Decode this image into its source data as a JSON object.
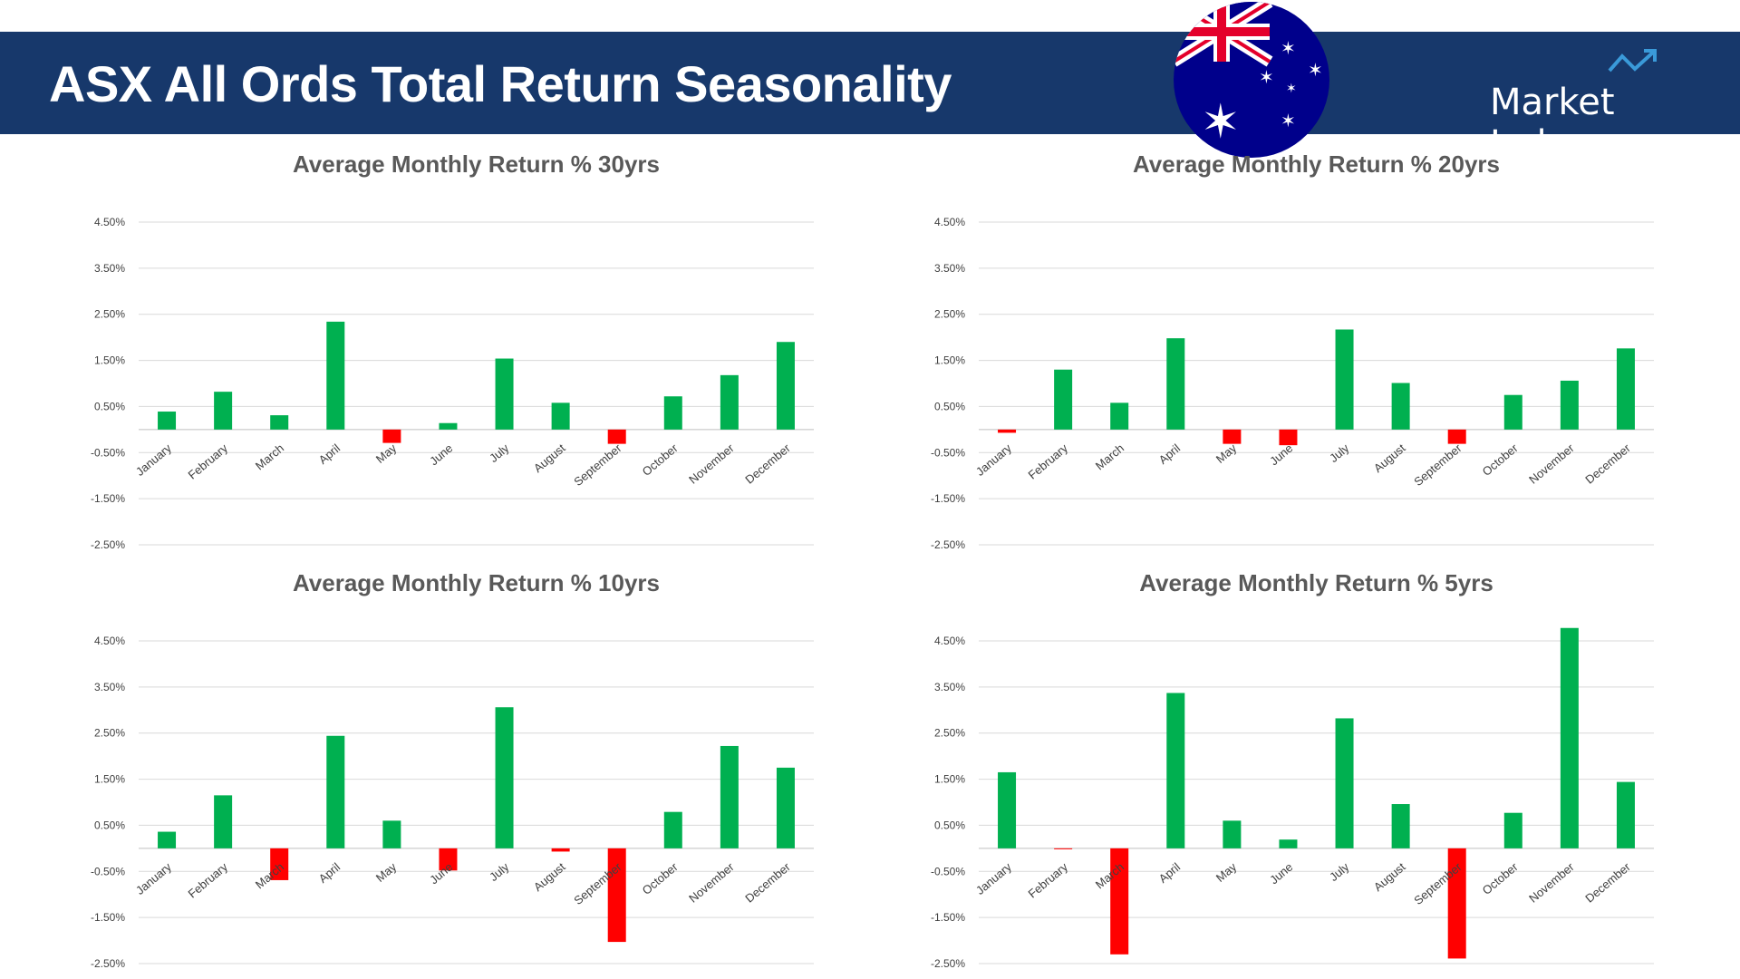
{
  "header": {
    "title": "ASX All Ords Total Return Seasonality",
    "logo_text": "Market Index",
    "logo_icon": "trend-up-arrow-icon",
    "flag": "australia-flag"
  },
  "colors": {
    "positive": "#00B050",
    "negative": "#FF0000",
    "header_bg": "#17386b",
    "grid": "#d9d9d9"
  },
  "chart_data": [
    {
      "type": "bar",
      "title": "Average Monthly Return % 30yrs",
      "yticks": [
        "4.50%",
        "3.50%",
        "2.50%",
        "1.50%",
        "0.50%",
        "-0.50%",
        "-1.50%",
        "-2.50%"
      ],
      "ytick_values": [
        4.5,
        3.5,
        2.5,
        1.5,
        0.5,
        -0.5,
        -1.5,
        -2.5
      ],
      "ylim": [
        -2.5,
        4.5
      ],
      "grid": true,
      "categories": [
        "January",
        "February",
        "March",
        "April",
        "May",
        "June",
        "July",
        "August",
        "September",
        "October",
        "November",
        "December"
      ],
      "values": [
        0.39,
        0.82,
        0.31,
        2.34,
        -0.29,
        0.14,
        1.54,
        0.58,
        -0.31,
        0.72,
        1.18,
        1.9
      ]
    },
    {
      "type": "bar",
      "title": "Average Monthly Return % 20yrs",
      "yticks": [
        "4.50%",
        "3.50%",
        "2.50%",
        "1.50%",
        "0.50%",
        "-0.50%",
        "-1.50%",
        "-2.50%"
      ],
      "ytick_values": [
        4.5,
        3.5,
        2.5,
        1.5,
        0.5,
        -0.5,
        -1.5,
        -2.5
      ],
      "ylim": [
        -2.5,
        4.5
      ],
      "grid": true,
      "categories": [
        "January",
        "February",
        "March",
        "April",
        "May",
        "June",
        "July",
        "August",
        "September",
        "October",
        "November",
        "December"
      ],
      "values": [
        -0.07,
        1.3,
        0.58,
        1.98,
        -0.31,
        -0.34,
        2.17,
        1.01,
        -0.31,
        0.75,
        1.06,
        1.76
      ]
    },
    {
      "type": "bar",
      "title": "Average Monthly Return % 10yrs",
      "yticks": [
        "4.50%",
        "3.50%",
        "2.50%",
        "1.50%",
        "0.50%",
        "-0.50%",
        "-1.50%",
        "-2.50%"
      ],
      "ytick_values": [
        4.5,
        3.5,
        2.5,
        1.5,
        0.5,
        -0.5,
        -1.5,
        -2.5
      ],
      "ylim": [
        -2.5,
        4.5
      ],
      "grid": true,
      "categories": [
        "January",
        "February",
        "March",
        "April",
        "May",
        "June",
        "July",
        "August",
        "September",
        "October",
        "November",
        "December"
      ],
      "values": [
        0.36,
        1.15,
        -0.69,
        2.44,
        0.6,
        -0.48,
        3.06,
        -0.07,
        -2.03,
        0.79,
        2.22,
        1.75
      ]
    },
    {
      "type": "bar",
      "title": "Average Monthly Return % 5yrs",
      "yticks": [
        "4.50%",
        "3.50%",
        "2.50%",
        "1.50%",
        "0.50%",
        "-0.50%",
        "-1.50%",
        "-2.50%"
      ],
      "ytick_values": [
        4.5,
        3.5,
        2.5,
        1.5,
        0.5,
        -0.5,
        -1.5,
        -2.5
      ],
      "ylim": [
        -2.5,
        4.5
      ],
      "grid": true,
      "categories": [
        "January",
        "February",
        "March",
        "April",
        "May",
        "June",
        "July",
        "August",
        "September",
        "October",
        "November",
        "December"
      ],
      "values": [
        1.65,
        -0.02,
        -2.3,
        3.37,
        0.6,
        0.19,
        2.82,
        0.96,
        -2.39,
        0.77,
        4.78,
        1.44
      ]
    }
  ]
}
